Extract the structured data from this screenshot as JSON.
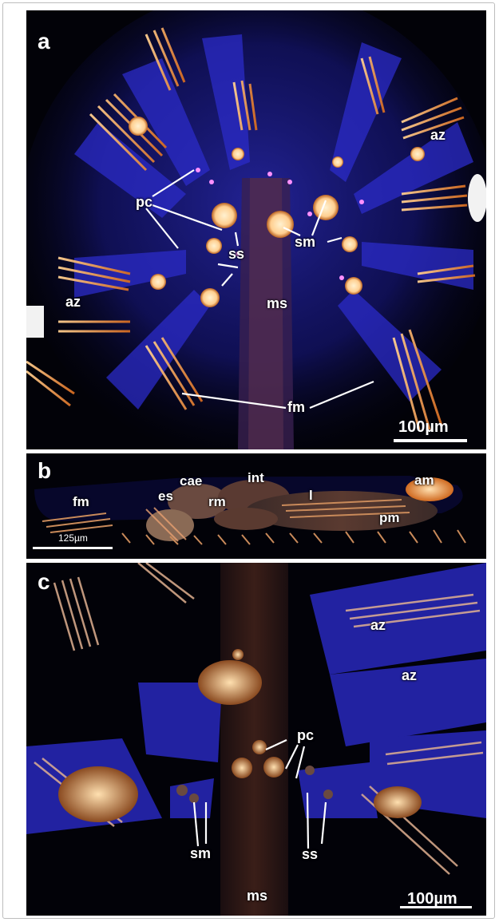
{
  "panels": [
    {
      "letter": "a",
      "labels": {
        "az_upper": "az",
        "az_left": "az",
        "pc": "pc",
        "ss": "ss",
        "sm": "sm",
        "ms": "ms",
        "fm": "fm"
      },
      "scale_bar": "100µm"
    },
    {
      "letter": "b",
      "labels": {
        "fm": "fm",
        "cae": "cae",
        "int": "int",
        "es": "es",
        "rm": "rm",
        "l": "l",
        "am": "am",
        "pm": "pm"
      },
      "scale_bar": "125µm"
    },
    {
      "letter": "c",
      "labels": {
        "az_upper": "az",
        "az_lower": "az",
        "pc": "pc",
        "sm": "sm",
        "ss": "ss",
        "ms": "ms"
      },
      "scale_bar": "100µm"
    }
  ],
  "colors": {
    "background": "#020208",
    "tissue_blue": "#2a2ad8",
    "muscle_orange": "#f0a060",
    "highlight": "#ffe6b0",
    "label": "#ffffff"
  }
}
